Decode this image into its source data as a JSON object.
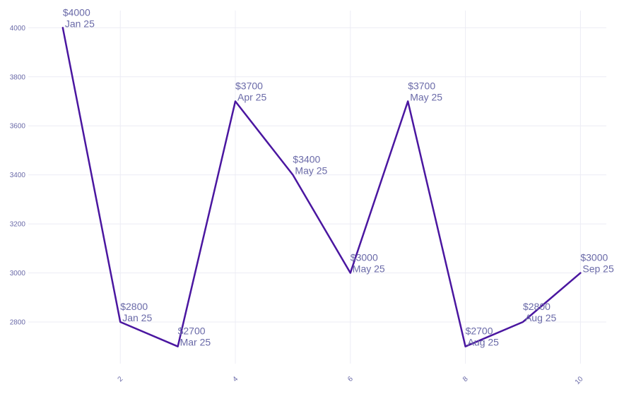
{
  "chart_data": {
    "type": "line",
    "title": "",
    "xlabel": "",
    "ylabel": "",
    "x": [
      1,
      2,
      3,
      4,
      5,
      6,
      7,
      8,
      9,
      10
    ],
    "series": [
      {
        "values": [
          4000,
          2800,
          2700,
          3700,
          3400,
          3000,
          3700,
          2700,
          2800,
          3000
        ],
        "value_labels": [
          "$4000",
          "$2800",
          "$2700",
          "$3700",
          "$3400",
          "$3000",
          "$3700",
          "$2700",
          "$2800",
          "$3000"
        ],
        "date_labels": [
          "Jan 25",
          "Jan 25",
          "Mar 25",
          "Apr 25",
          "May 25",
          "May 25",
          "May 25",
          "Aug 25",
          "Aug 25",
          "Sep 25"
        ]
      }
    ],
    "x_ticks": [
      "2",
      "4",
      "6",
      "8",
      "10"
    ],
    "y_ticks": [
      "2800",
      "3000",
      "3200",
      "3400",
      "3600",
      "3800",
      "4000"
    ],
    "xlim": [
      0.4,
      10.45
    ],
    "ylim": [
      2630,
      4070
    ],
    "grid": true,
    "legend": "none",
    "line_color": "#4a16a0"
  }
}
